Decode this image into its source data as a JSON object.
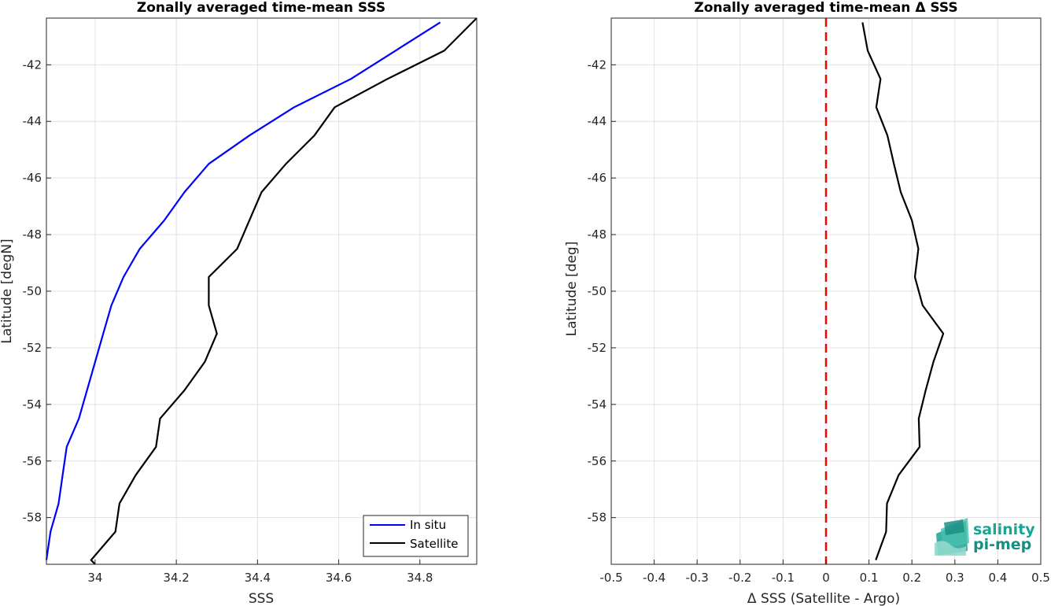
{
  "chart_data": [
    {
      "type": "line",
      "title": "Zonally averaged time-mean SSS",
      "xlabel": "SSS",
      "ylabel": "Latitude [degN]",
      "xlim": [
        33.88,
        34.94
      ],
      "ylim": [
        -59.65,
        -40.35
      ],
      "xticks": [
        34,
        34.2,
        34.4,
        34.6,
        34.8
      ],
      "xtick_labels": [
        "34",
        "34.2",
        "34.4",
        "34.6",
        "34.8"
      ],
      "yticks": [
        -42,
        -44,
        -46,
        -48,
        -50,
        -52,
        -54,
        -56,
        -58
      ],
      "ytick_labels": [
        "-42",
        "-44",
        "-46",
        "-48",
        "-50",
        "-52",
        "-54",
        "-56",
        "-58"
      ],
      "grid": true,
      "legend_position": "bottom-right",
      "series": [
        {
          "name": "In situ",
          "color": "#0000ff",
          "x": [
            34.85,
            34.74,
            34.63,
            34.49,
            34.38,
            34.28,
            34.22,
            34.17,
            34.11,
            34.07,
            34.04,
            34.02,
            34.0,
            33.98,
            33.96,
            33.93,
            33.92,
            33.91,
            33.89,
            33.88
          ],
          "y": [
            -40.5,
            -41.5,
            -42.5,
            -43.5,
            -44.5,
            -45.5,
            -46.5,
            -47.5,
            -48.5,
            -49.5,
            -50.5,
            -51.5,
            -52.5,
            -53.5,
            -54.5,
            -55.5,
            -56.5,
            -57.5,
            -58.5,
            -59.5
          ]
        },
        {
          "name": "Satellite",
          "color": "#000000",
          "x": [
            34.94,
            34.86,
            34.72,
            34.59,
            34.54,
            34.47,
            34.41,
            34.38,
            34.35,
            34.28,
            34.28,
            34.3,
            34.27,
            34.22,
            34.16,
            34.15,
            34.1,
            34.06,
            34.05,
            33.99,
            34.0
          ],
          "y": [
            -40.2,
            -41.5,
            -42.5,
            -43.5,
            -44.5,
            -45.5,
            -46.5,
            -47.5,
            -48.5,
            -49.5,
            -50.5,
            -51.5,
            -52.5,
            -53.5,
            -54.5,
            -55.5,
            -56.5,
            -57.5,
            -58.5,
            -59.5,
            -59.8
          ]
        }
      ]
    },
    {
      "type": "line",
      "title": "Zonally averaged time-mean Δ SSS",
      "xlabel": "Δ SSS (Satellite - Argo)",
      "ylabel": "Latitude [deg]",
      "xlim": [
        -0.5,
        0.5
      ],
      "ylim": [
        -59.65,
        -40.35
      ],
      "xticks": [
        -0.5,
        -0.4,
        -0.3,
        -0.2,
        -0.1,
        0,
        0.1,
        0.2,
        0.3,
        0.4,
        0.5
      ],
      "xtick_labels": [
        "-0.5",
        "-0.4",
        "-0.3",
        "-0.2",
        "-0.1",
        "0",
        "0.1",
        "0.2",
        "0.3",
        "0.4",
        "0.5"
      ],
      "yticks": [
        -42,
        -44,
        -46,
        -48,
        -50,
        -52,
        -54,
        -56,
        -58
      ],
      "ytick_labels": [
        "-42",
        "-44",
        "-46",
        "-48",
        "-50",
        "-52",
        "-54",
        "-56",
        "-58"
      ],
      "grid": true,
      "reference_line": {
        "x": 0,
        "color": "#ff0000",
        "style": "dashed"
      },
      "series": [
        {
          "color": "#000000",
          "x": [
            0.085,
            0.097,
            0.127,
            0.117,
            0.143,
            0.158,
            0.174,
            0.2,
            0.215,
            0.207,
            0.225,
            0.273,
            0.25,
            0.232,
            0.216,
            0.218,
            0.169,
            0.142,
            0.14,
            0.116
          ],
          "y": [
            -40.5,
            -41.5,
            -42.5,
            -43.5,
            -44.5,
            -45.5,
            -46.5,
            -47.5,
            -48.5,
            -49.5,
            -50.5,
            -51.5,
            -52.5,
            -53.5,
            -54.5,
            -55.5,
            -56.5,
            -57.5,
            -58.5,
            -59.5
          ]
        }
      ]
    }
  ],
  "logo": {
    "line1": "salinity",
    "line2": "pi-mep"
  }
}
